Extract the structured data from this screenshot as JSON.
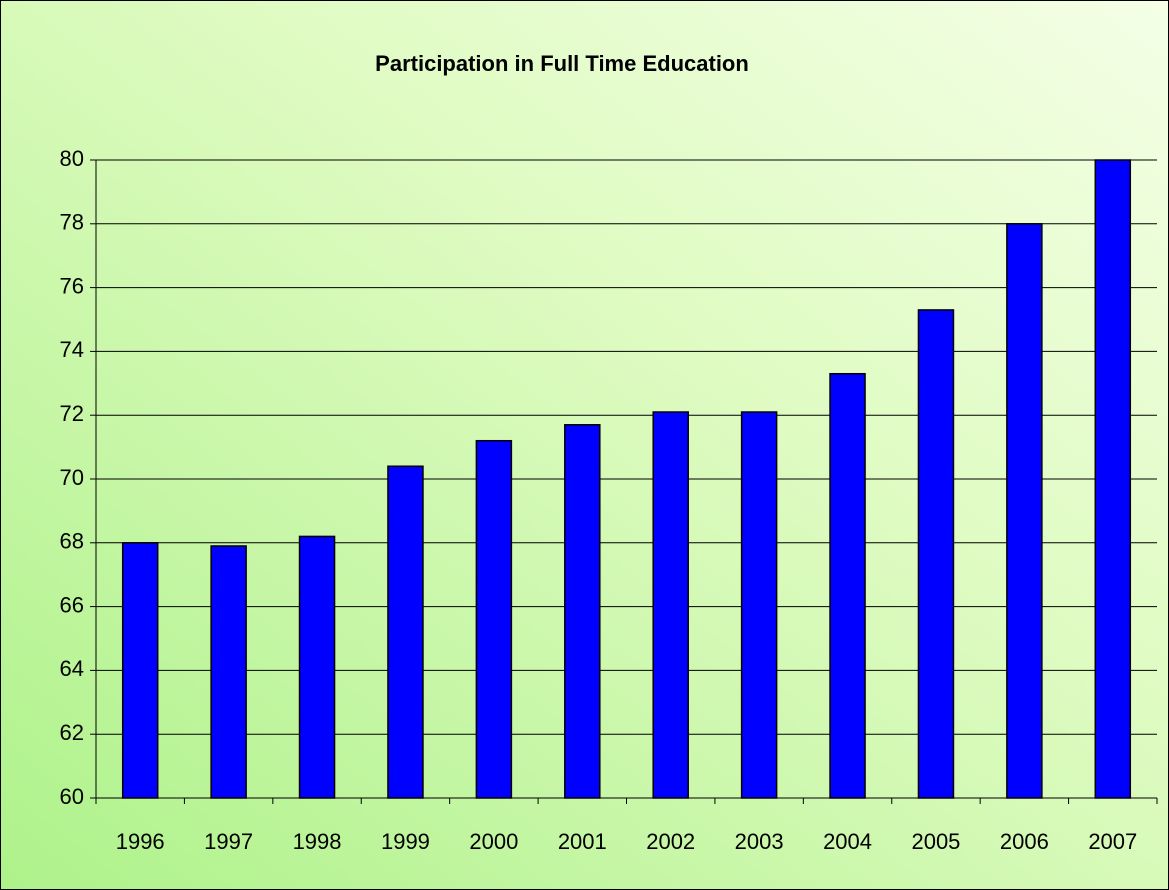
{
  "chart_data": {
    "type": "bar",
    "title": "Participation in Full Time Education",
    "categories": [
      "1996",
      "1997",
      "1998",
      "1999",
      "2000",
      "2001",
      "2002",
      "2003",
      "2004",
      "2005",
      "2006",
      "2007"
    ],
    "values": [
      68.0,
      67.9,
      68.2,
      70.4,
      71.2,
      71.7,
      72.1,
      72.1,
      73.3,
      75.3,
      78.0,
      80.0
    ],
    "color": "#0000ff",
    "ylim": [
      60,
      80
    ],
    "yticks": [
      60,
      62,
      64,
      66,
      68,
      70,
      72,
      74,
      76,
      78,
      80
    ],
    "grid": true
  }
}
